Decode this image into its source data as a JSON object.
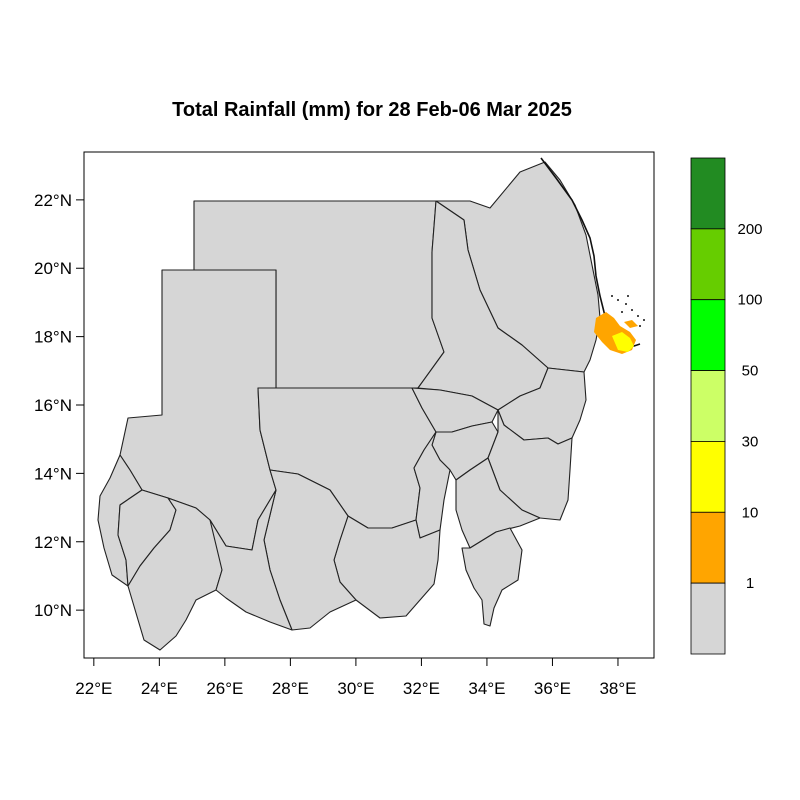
{
  "title": "Total Rainfall (mm) for 28 Feb-06 Mar 2025",
  "x_axis": {
    "range": [
      21.7,
      39.1
    ],
    "ticks": [
      {
        "value": 22,
        "label": "22°E"
      },
      {
        "value": 24,
        "label": "24°E"
      },
      {
        "value": 26,
        "label": "26°E"
      },
      {
        "value": 28,
        "label": "28°E"
      },
      {
        "value": 30,
        "label": "30°E"
      },
      {
        "value": 32,
        "label": "32°E"
      },
      {
        "value": 34,
        "label": "34°E"
      },
      {
        "value": 36,
        "label": "36°E"
      },
      {
        "value": 38,
        "label": "38°E"
      }
    ]
  },
  "y_axis": {
    "range": [
      8.6,
      23.4
    ],
    "ticks": [
      {
        "value": 22,
        "label": "22°N"
      },
      {
        "value": 20,
        "label": "20°N"
      },
      {
        "value": 18,
        "label": "18°N"
      },
      {
        "value": 16,
        "label": "16°N"
      },
      {
        "value": 14,
        "label": "14°N"
      },
      {
        "value": 12,
        "label": "12°N"
      },
      {
        "value": 10,
        "label": "10°N"
      }
    ]
  },
  "colorbar": {
    "bins": [
      {
        "color": "#228b22"
      },
      {
        "color": "#66cd00"
      },
      {
        "color": "#00ff00"
      },
      {
        "color": "#ccff66"
      },
      {
        "color": "#ffff00"
      },
      {
        "color": "#ffa500"
      },
      {
        "color": "#d6d6d6"
      }
    ],
    "labels": [
      "200",
      "100",
      "50",
      "30",
      "10",
      "1"
    ]
  },
  "map": {
    "land_color": "#d6d6d6",
    "rain_areas": [
      {
        "level": "1-10 mm",
        "color": "#ffa500"
      },
      {
        "level": "10-30 mm",
        "color": "#ffff00"
      }
    ]
  }
}
